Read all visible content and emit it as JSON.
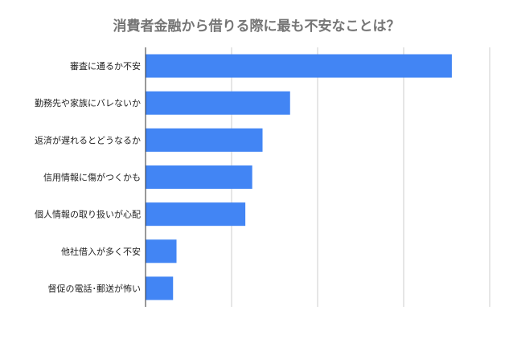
{
  "chart_data": {
    "type": "bar",
    "orientation": "horizontal",
    "title": "消費者金融から借りる際に最も不安なことは？",
    "categories": [
      "審査に通るか不安",
      "勤務先や家族にバレないか",
      "返済が遅れるとどうなるか",
      "信用情報に傷がつくかも",
      "個人情報の取り扱いが心配",
      "他社借入が多く不安",
      "督促の電話･郵送が怖い"
    ],
    "values": [
      178,
      84,
      68,
      62,
      58,
      18,
      16
    ],
    "xlim": [
      0,
      200
    ],
    "xlabel": "",
    "ylabel": "",
    "grid": true,
    "tick_labels_shown": false,
    "legend": "none",
    "bar_color": "#4285f4"
  }
}
